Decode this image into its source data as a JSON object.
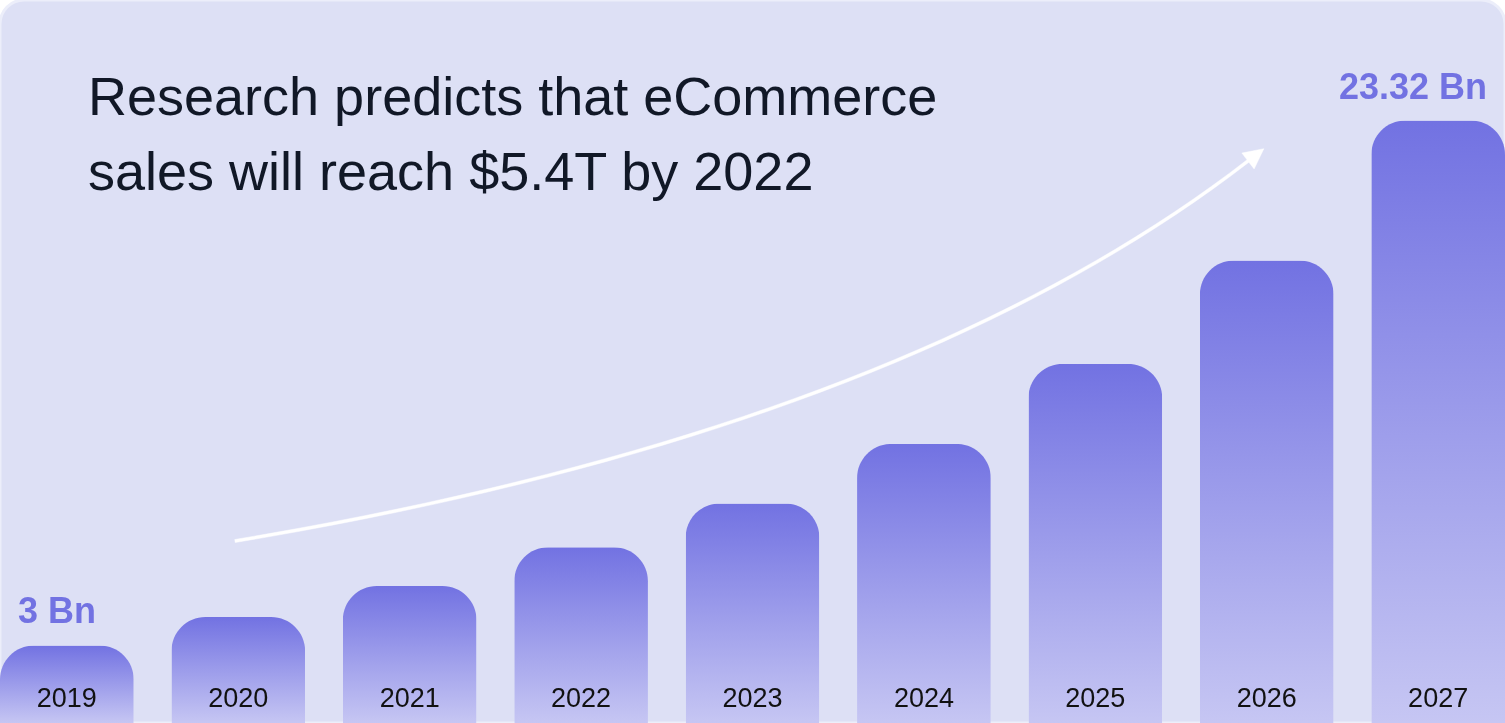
{
  "chart_data": {
    "type": "bar",
    "title": "Research predicts that eCommerce sales will reach $5.4T by 2022",
    "categories": [
      "2019",
      "2020",
      "2021",
      "2022",
      "2023",
      "2024",
      "2025",
      "2026",
      "2027"
    ],
    "values": [
      3,
      4.1,
      5.3,
      6.8,
      8.5,
      10.8,
      13.9,
      17.9,
      23.32
    ],
    "value_labels": [
      "3 Bn",
      null,
      null,
      null,
      null,
      null,
      null,
      null,
      "23.32 Bn"
    ],
    "color": "#7272e2"
  }
}
